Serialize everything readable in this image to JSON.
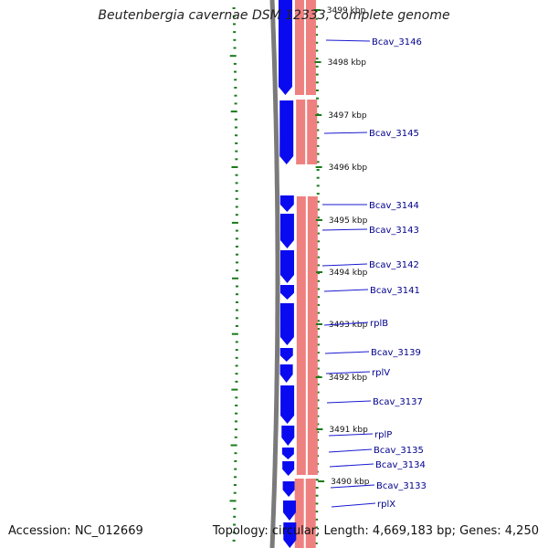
{
  "title": "Beutenbergia cavernae DSM 12333, complete genome",
  "accession_label": "Accession: NC_012669",
  "topology_text": "Topology: circular; Length: 4,669,183 bp; Genes: 4,250",
  "colors": {
    "forward_strand": "#0a0af0",
    "reverse_strand": "#ef8080",
    "backbone": "#7a7a7a",
    "gc_ticks": "#1a7a1a",
    "label_text": "#00008b",
    "leader_line": "#1a1ad0",
    "scale_text": "#111111"
  },
  "scale_ticks": [
    "3499 kbp",
    "3498 kbp",
    "3497 kbp",
    "3496 kbp",
    "3495 kbp",
    "3494 kbp",
    "3493 kbp",
    "3492 kbp",
    "3491 kbp",
    "3490 kbp"
  ],
  "genes": [
    {
      "label": "Bcav_3146",
      "strand": "forward"
    },
    {
      "label": "Bcav_3145",
      "strand": "forward"
    },
    {
      "label": "Bcav_3144",
      "strand": "forward"
    },
    {
      "label": "Bcav_3143",
      "strand": "forward"
    },
    {
      "label": "Bcav_3142",
      "strand": "forward"
    },
    {
      "label": "Bcav_3141",
      "strand": "forward"
    },
    {
      "label": "rplB",
      "strand": "forward"
    },
    {
      "label": "Bcav_3139",
      "strand": "forward"
    },
    {
      "label": "rplV",
      "strand": "forward"
    },
    {
      "label": "Bcav_3137",
      "strand": "forward"
    },
    {
      "label": "rplP",
      "strand": "forward"
    },
    {
      "label": "Bcav_3135",
      "strand": "forward"
    },
    {
      "label": "Bcav_3134",
      "strand": "forward"
    },
    {
      "label": "Bcav_3133",
      "strand": "forward"
    },
    {
      "label": "rplX",
      "strand": "forward"
    }
  ]
}
